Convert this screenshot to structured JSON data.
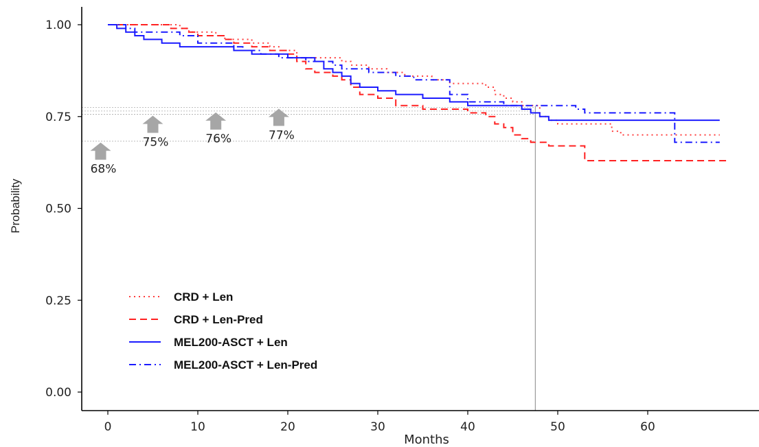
{
  "chart_data": {
    "type": "line",
    "xlabel": "Months",
    "ylabel": "Probability",
    "xlim": [
      -3,
      70
    ],
    "ylim": [
      -0.05,
      1.05
    ],
    "x_ticks": [
      0,
      10,
      20,
      30,
      40,
      50,
      60
    ],
    "y_ticks": [
      0.0,
      0.25,
      0.5,
      0.75,
      1.0
    ],
    "y_tick_labels": [
      "0.00",
      "0.25",
      "0.50",
      "0.75",
      "1.00"
    ],
    "grid": false,
    "legend_position": "bottom-left",
    "reference_lines": {
      "horizontal": [
        0.683,
        0.756,
        0.765,
        0.775
      ],
      "vertical": [
        47.5
      ]
    },
    "annotations": [
      {
        "text": "68%",
        "x": -0.8,
        "y": 0.683
      },
      {
        "text": "75%",
        "x": 5,
        "y": 0.756
      },
      {
        "text": "76%",
        "x": 12,
        "y": 0.765
      },
      {
        "text": "77%",
        "x": 19,
        "y": 0.775
      }
    ],
    "series": [
      {
        "name": "CRD + Len",
        "color": "#ff3b3b",
        "dash": "dotted",
        "x": [
          0,
          7,
          8,
          9,
          12,
          13,
          16,
          18,
          19,
          21,
          26,
          27,
          29,
          31,
          33,
          36,
          38,
          42,
          43,
          44,
          45,
          46,
          48,
          49,
          50,
          56,
          57,
          68
        ],
        "y": [
          1.0,
          1.0,
          0.99,
          0.98,
          0.97,
          0.96,
          0.95,
          0.94,
          0.93,
          0.91,
          0.9,
          0.89,
          0.88,
          0.87,
          0.86,
          0.85,
          0.84,
          0.83,
          0.81,
          0.8,
          0.79,
          0.78,
          0.75,
          0.74,
          0.73,
          0.71,
          0.7,
          0.7
        ]
      },
      {
        "name": "CRD + Len-Pred",
        "color": "#ff2020",
        "dash": "dashed",
        "x": [
          0,
          6,
          7,
          9,
          10,
          13,
          14,
          16,
          18,
          20,
          21,
          22,
          23,
          25,
          26,
          27,
          28,
          30,
          32,
          35,
          40,
          42,
          43,
          44,
          45,
          46,
          47,
          48,
          49,
          52,
          53,
          69
        ],
        "y": [
          1.0,
          1.0,
          0.99,
          0.98,
          0.97,
          0.96,
          0.95,
          0.94,
          0.93,
          0.92,
          0.9,
          0.88,
          0.87,
          0.86,
          0.85,
          0.83,
          0.81,
          0.8,
          0.78,
          0.77,
          0.76,
          0.75,
          0.73,
          0.72,
          0.7,
          0.69,
          0.68,
          0.68,
          0.67,
          0.67,
          0.63,
          0.63
        ]
      },
      {
        "name": "MEL200-ASCT + Len",
        "color": "#1a1aff",
        "solid": true,
        "x": [
          0,
          1,
          2,
          3,
          4,
          5,
          6,
          8,
          14,
          16,
          20,
          23,
          24,
          25,
          26,
          27,
          28,
          30,
          32,
          35,
          38,
          40,
          41,
          46,
          47,
          48,
          49,
          50,
          68
        ],
        "y": [
          1.0,
          0.99,
          0.98,
          0.97,
          0.96,
          0.96,
          0.95,
          0.94,
          0.93,
          0.92,
          0.91,
          0.9,
          0.88,
          0.87,
          0.86,
          0.84,
          0.83,
          0.82,
          0.81,
          0.8,
          0.79,
          0.78,
          0.78,
          0.77,
          0.76,
          0.75,
          0.74,
          0.74,
          0.74
        ]
      },
      {
        "name": "MEL200-ASCT + Len-Pred",
        "color": "#1a1aff",
        "dash": "dashdot",
        "x": [
          0,
          2,
          3,
          5,
          8,
          10,
          14,
          15,
          17,
          19,
          22,
          25,
          26,
          27,
          29,
          32,
          34,
          38,
          40,
          44,
          47,
          52,
          53,
          63,
          68
        ],
        "y": [
          1.0,
          0.99,
          0.98,
          0.98,
          0.97,
          0.95,
          0.94,
          0.93,
          0.92,
          0.91,
          0.9,
          0.89,
          0.88,
          0.88,
          0.87,
          0.86,
          0.85,
          0.81,
          0.79,
          0.78,
          0.78,
          0.77,
          0.76,
          0.68,
          0.68
        ]
      }
    ]
  }
}
